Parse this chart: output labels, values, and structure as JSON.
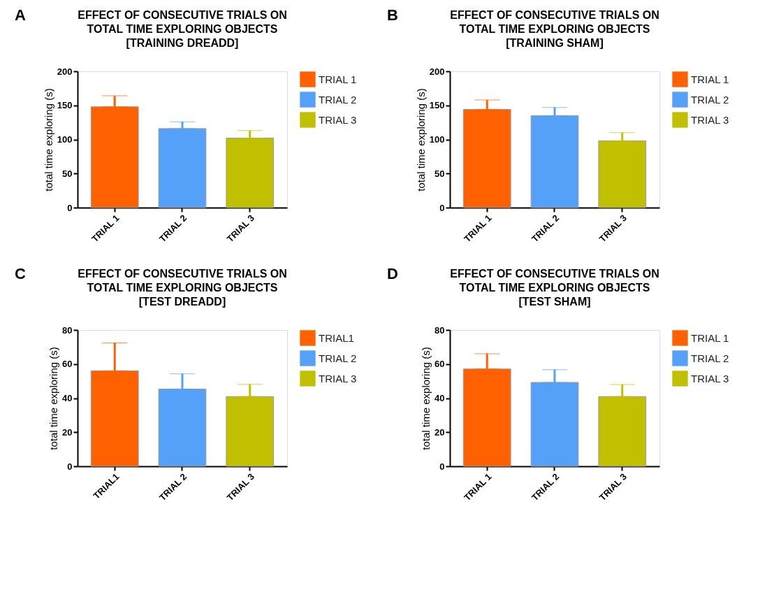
{
  "chart_data": [
    {
      "type": "bar",
      "title": "EFFECT OF CONSECUTIVE TRIALS ON\nTOTAL TIME EXPLORING OBJECTS\n[TRAINING DREADD]",
      "ylabel": "total time exploring (s)",
      "annotations": [
        "A"
      ],
      "categories": [
        "TRIAL 1",
        "TRIAL 2",
        "TRIAL 3"
      ],
      "ylim": [
        0,
        200
      ],
      "yticks": [
        0,
        50,
        100,
        150,
        200
      ],
      "grid": false,
      "legend": "top right",
      "series": [
        {
          "name": "TRIAL 1",
          "color": "#ff6000",
          "values": [
            148,
            null,
            null
          ],
          "errors": [
            [
              148,
              164
            ],
            null,
            null
          ]
        },
        {
          "name": "TRIAL 2",
          "color": "#55a0f8",
          "values": [
            null,
            116,
            null
          ],
          "errors": [
            null,
            [
              116,
              126
            ],
            null
          ]
        },
        {
          "name": "TRIAL 3",
          "color": "#c0c000",
          "values": [
            null,
            null,
            102
          ],
          "errors": [
            null,
            null,
            [
              102,
              113
            ]
          ]
        }
      ]
    },
    {
      "type": "bar",
      "title": "EFFECT OF CONSECUTIVE TRIALS ON\nTOTAL TIME EXPLORING OBJECTS\n[TRAINING SHAM]",
      "ylabel": "total time exploring (s)",
      "annotations": [
        "B"
      ],
      "categories": [
        "TRIAL 1",
        "TRIAL 2",
        "TRIAL 3"
      ],
      "ylim": [
        0,
        200
      ],
      "yticks": [
        0,
        50,
        100,
        150,
        200
      ],
      "grid": false,
      "legend": "top right",
      "series": [
        {
          "name": "TRIAL 1",
          "color": "#ff6000",
          "values": [
            144,
            null,
            null
          ],
          "errors": [
            [
              144,
              158
            ],
            null,
            null
          ]
        },
        {
          "name": "TRIAL 2",
          "color": "#55a0f8",
          "values": [
            null,
            135,
            null
          ],
          "errors": [
            null,
            [
              135,
              147
            ],
            null
          ]
        },
        {
          "name": "TRIAL 3",
          "color": "#c0c000",
          "values": [
            null,
            null,
            98
          ],
          "errors": [
            null,
            null,
            [
              98,
              110
            ]
          ]
        }
      ]
    },
    {
      "type": "bar",
      "title": "EFFECT OF CONSECUTIVE TRIALS ON\nTOTAL TIME EXPLORING OBJECTS\n[TEST DREADD]",
      "ylabel": "total time exploring (s)",
      "annotations": [
        "C"
      ],
      "categories": [
        "TRIAL1",
        "TRIAL 2",
        "TRIAL 3"
      ],
      "ylim": [
        0,
        80
      ],
      "yticks": [
        0,
        20,
        40,
        60,
        80
      ],
      "grid": false,
      "legend": "top right",
      "series": [
        {
          "name": "TRIAL1",
          "color": "#ff6000",
          "values": [
            56,
            null,
            null
          ],
          "errors": [
            [
              56,
              72.4
            ],
            null,
            null
          ]
        },
        {
          "name": "TRIAL 2",
          "color": "#55a0f8",
          "values": [
            null,
            45.3,
            null
          ],
          "errors": [
            null,
            [
              45.3,
              54.3
            ],
            null
          ]
        },
        {
          "name": "TRIAL 3",
          "color": "#c0c000",
          "values": [
            null,
            null,
            40.9
          ],
          "errors": [
            null,
            null,
            [
              40.9,
              48.1
            ]
          ]
        }
      ]
    },
    {
      "type": "bar",
      "title": "EFFECT OF CONSECUTIVE TRIALS ON\nTOTAL TIME EXPLORING OBJECTS\n[TEST SHAM]",
      "ylabel": "total time exploring (s)",
      "annotations": [
        "D"
      ],
      "categories": [
        "TRIAL 1",
        "TRIAL 2",
        "TRIAL 3"
      ],
      "ylim": [
        0,
        80
      ],
      "yticks": [
        0,
        20,
        40,
        60,
        80
      ],
      "grid": false,
      "legend": "top right",
      "series": [
        {
          "name": "TRIAL 1",
          "color": "#ff6000",
          "values": [
            57.1,
            null,
            null
          ],
          "errors": [
            [
              57.1,
              66.1
            ],
            null,
            null
          ]
        },
        {
          "name": "TRIAL 2",
          "color": "#55a0f8",
          "values": [
            null,
            49.2,
            null
          ],
          "errors": [
            null,
            [
              49.2,
              56.7
            ],
            null
          ]
        },
        {
          "name": "TRIAL 3",
          "color": "#c0c000",
          "values": [
            null,
            null,
            40.9
          ],
          "errors": [
            null,
            null,
            [
              40.9,
              48
            ]
          ]
        }
      ]
    }
  ]
}
